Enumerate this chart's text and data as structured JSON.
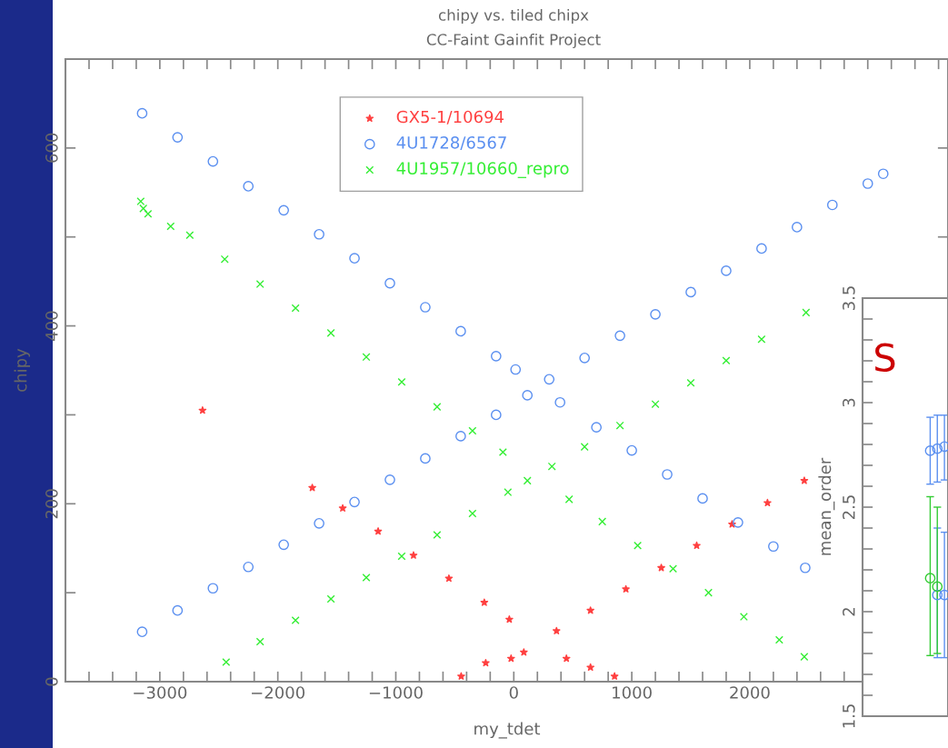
{
  "chart_data": [
    {
      "type": "scatter",
      "title": "chipy vs. tiled chipx",
      "subtitle": "CC-Faint Gainfit Project",
      "xlabel": "my_tdet",
      "ylabel": "chipy",
      "xlim": [
        -3800,
        3680
      ],
      "ylim": [
        0,
        700
      ],
      "xticks": [
        {
          "value": -3800,
          "label": null
        },
        {
          "value": -3600,
          "label": null
        },
        {
          "value": -3400,
          "label": null
        },
        {
          "value": -3200,
          "label": null
        },
        {
          "value": -3000,
          "label": "−3000"
        },
        {
          "value": -2800,
          "label": null
        },
        {
          "value": -2600,
          "label": null
        },
        {
          "value": -2400,
          "label": null
        },
        {
          "value": -2200,
          "label": null
        },
        {
          "value": -2000,
          "label": "−2000"
        },
        {
          "value": -1800,
          "label": null
        },
        {
          "value": -1600,
          "label": null
        },
        {
          "value": -1400,
          "label": null
        },
        {
          "value": -1200,
          "label": null
        },
        {
          "value": -1000,
          "label": "−1000"
        },
        {
          "value": -800,
          "label": null
        },
        {
          "value": -600,
          "label": null
        },
        {
          "value": -400,
          "label": null
        },
        {
          "value": -200,
          "label": null
        },
        0,
        {
          "value": 200,
          "label": null
        },
        {
          "value": 400,
          "label": null
        },
        {
          "value": 600,
          "label": null
        },
        {
          "value": 800,
          "label": null
        },
        1000,
        {
          "value": 1200,
          "label": null
        },
        {
          "value": 1400,
          "label": null
        },
        {
          "value": 1600,
          "label": null
        },
        {
          "value": 1800,
          "label": null
        },
        2000,
        {
          "value": 2200,
          "label": null
        },
        {
          "value": 2400,
          "label": null
        },
        {
          "value": 2600,
          "label": null
        },
        {
          "value": 2800,
          "label": null
        },
        {
          "value": 3000,
          "label": null
        },
        {
          "value": 3200,
          "label": null
        },
        {
          "value": 3400,
          "label": null
        },
        {
          "value": 3600,
          "label": null
        }
      ],
      "yticks": [
        0,
        {
          "value": 100,
          "label": null
        },
        200,
        {
          "value": 300,
          "label": null
        },
        400,
        {
          "value": 500,
          "label": null
        },
        600
      ],
      "grid": false,
      "legend": "top left",
      "series": [
        {
          "name": "GX5-1/10694",
          "color": "#ff4040",
          "marker": "star",
          "x": [
            -2638,
            -1708,
            -1450,
            -1150,
            -850,
            -550,
            -250,
            -38,
            -446,
            -238,
            -23,
            85,
            362,
            650,
            950,
            1250,
            1550,
            1850,
            2150,
            2462,
            446,
            650,
            854
          ],
          "values": [
            305,
            218,
            195,
            169,
            142,
            116,
            89,
            70,
            6,
            21,
            26,
            33,
            57,
            80,
            104,
            128,
            153,
            177,
            201,
            226,
            26,
            16,
            6
          ]
        },
        {
          "name": "4U1728/6567",
          "color": "#5a8ff0",
          "marker": "circle",
          "x": [
            -3150,
            -2850,
            -2550,
            -2250,
            -1950,
            -1650,
            -1350,
            -1050,
            -750,
            -450,
            -150,
            15,
            -3150,
            -2850,
            -2550,
            -2250,
            -1950,
            -1650,
            -1350,
            -1050,
            -750,
            -450,
            -150,
            115,
            300,
            600,
            900,
            1200,
            1500,
            1800,
            2100,
            2400,
            2700,
            3000,
            3131,
            392,
            700,
            1000,
            1300,
            1600,
            1900,
            2200,
            2470
          ],
          "values": [
            639,
            612,
            585,
            557,
            530,
            503,
            476,
            448,
            421,
            394,
            366,
            351,
            56,
            80,
            105,
            129,
            154,
            178,
            202,
            227,
            251,
            276,
            300,
            322,
            340,
            364,
            389,
            413,
            438,
            462,
            487,
            511,
            536,
            560,
            571,
            314,
            286,
            260,
            233,
            206,
            179,
            152,
            128
          ]
        },
        {
          "name": "4U1957/10660_repro",
          "color": "#33ee33",
          "marker": "cross",
          "x": [
            -3162,
            -3140,
            -3100,
            -2908,
            -2746,
            -2450,
            -2150,
            -1850,
            -1550,
            -1250,
            -950,
            -650,
            -350,
            -92,
            -2438,
            -2150,
            -1850,
            -1550,
            -1250,
            -950,
            -650,
            -350,
            -50,
            115,
            323,
            600,
            900,
            1200,
            1500,
            1800,
            2100,
            2477,
            469,
            750,
            1050,
            1350,
            1650,
            1950,
            2250,
            2462
          ],
          "values": [
            540,
            532,
            526,
            512,
            502,
            475,
            447,
            420,
            392,
            365,
            337,
            309,
            282,
            258,
            22,
            45,
            69,
            93,
            117,
            141,
            165,
            189,
            213,
            226,
            242,
            264,
            288,
            312,
            336,
            361,
            385,
            415,
            205,
            180,
            153,
            127,
            100,
            73,
            47,
            28
          ]
        }
      ]
    },
    {
      "type": "scatter",
      "ylabel": "mean_order",
      "categories": [
        null,
        null,
        null,
        null,
        null,
        null,
        null,
        null,
        null,
        null,
        null,
        null
      ],
      "ylim": [
        1.5,
        3.5
      ],
      "yticks": [
        1.5,
        {
          "value": 1.6,
          "label": null
        },
        {
          "value": 1.7,
          "label": null
        },
        {
          "value": 1.8,
          "label": null
        },
        {
          "value": 1.9,
          "label": null
        },
        2,
        {
          "value": 2.1,
          "label": null
        },
        {
          "value": 2.2,
          "label": null
        },
        {
          "value": 2.3,
          "label": null
        },
        {
          "value": 2.4,
          "label": null
        },
        2.5,
        {
          "value": 2.6,
          "label": null
        },
        {
          "value": 2.7,
          "label": null
        },
        {
          "value": 2.8,
          "label": null
        },
        {
          "value": 2.9,
          "label": null
        },
        3,
        {
          "value": 3.1,
          "label": null
        },
        {
          "value": 3.2,
          "label": null
        },
        {
          "value": 3.3,
          "label": null
        },
        {
          "value": 3.4,
          "label": null
        },
        3.5
      ],
      "tick_labels": "y",
      "grid": false,
      "marker": "circle",
      "annotations": [
        "S"
      ],
      "series": [
        {
          "color": "#5a8ff0",
          "values": [
            null,
            null,
            null,
            null,
            null,
            null,
            null,
            null,
            null,
            2.77,
            2.78,
            2.79
          ],
          "errors": [
            null,
            null,
            null,
            null,
            null,
            null,
            null,
            null,
            null,
            [
              2.61,
              2.93
            ],
            [
              2.62,
              2.94
            ],
            [
              2.63,
              2.94
            ]
          ]
        },
        {
          "color": "#5a8ff0",
          "values": [
            null,
            null,
            null,
            null,
            null,
            null,
            null,
            null,
            null,
            null,
            2.08,
            2.08
          ],
          "errors": [
            null,
            null,
            null,
            null,
            null,
            null,
            null,
            null,
            null,
            null,
            [
              1.78,
              2.4
            ],
            [
              1.78,
              2.38
            ]
          ]
        },
        {
          "color": "#33cc33",
          "values": [
            null,
            null,
            null,
            null,
            null,
            null,
            null,
            null,
            null,
            2.16,
            2.12,
            null
          ],
          "errors": [
            null,
            null,
            null,
            null,
            null,
            null,
            null,
            null,
            null,
            [
              1.79,
              2.55
            ],
            [
              1.8,
              2.5
            ],
            null
          ]
        }
      ]
    }
  ]
}
